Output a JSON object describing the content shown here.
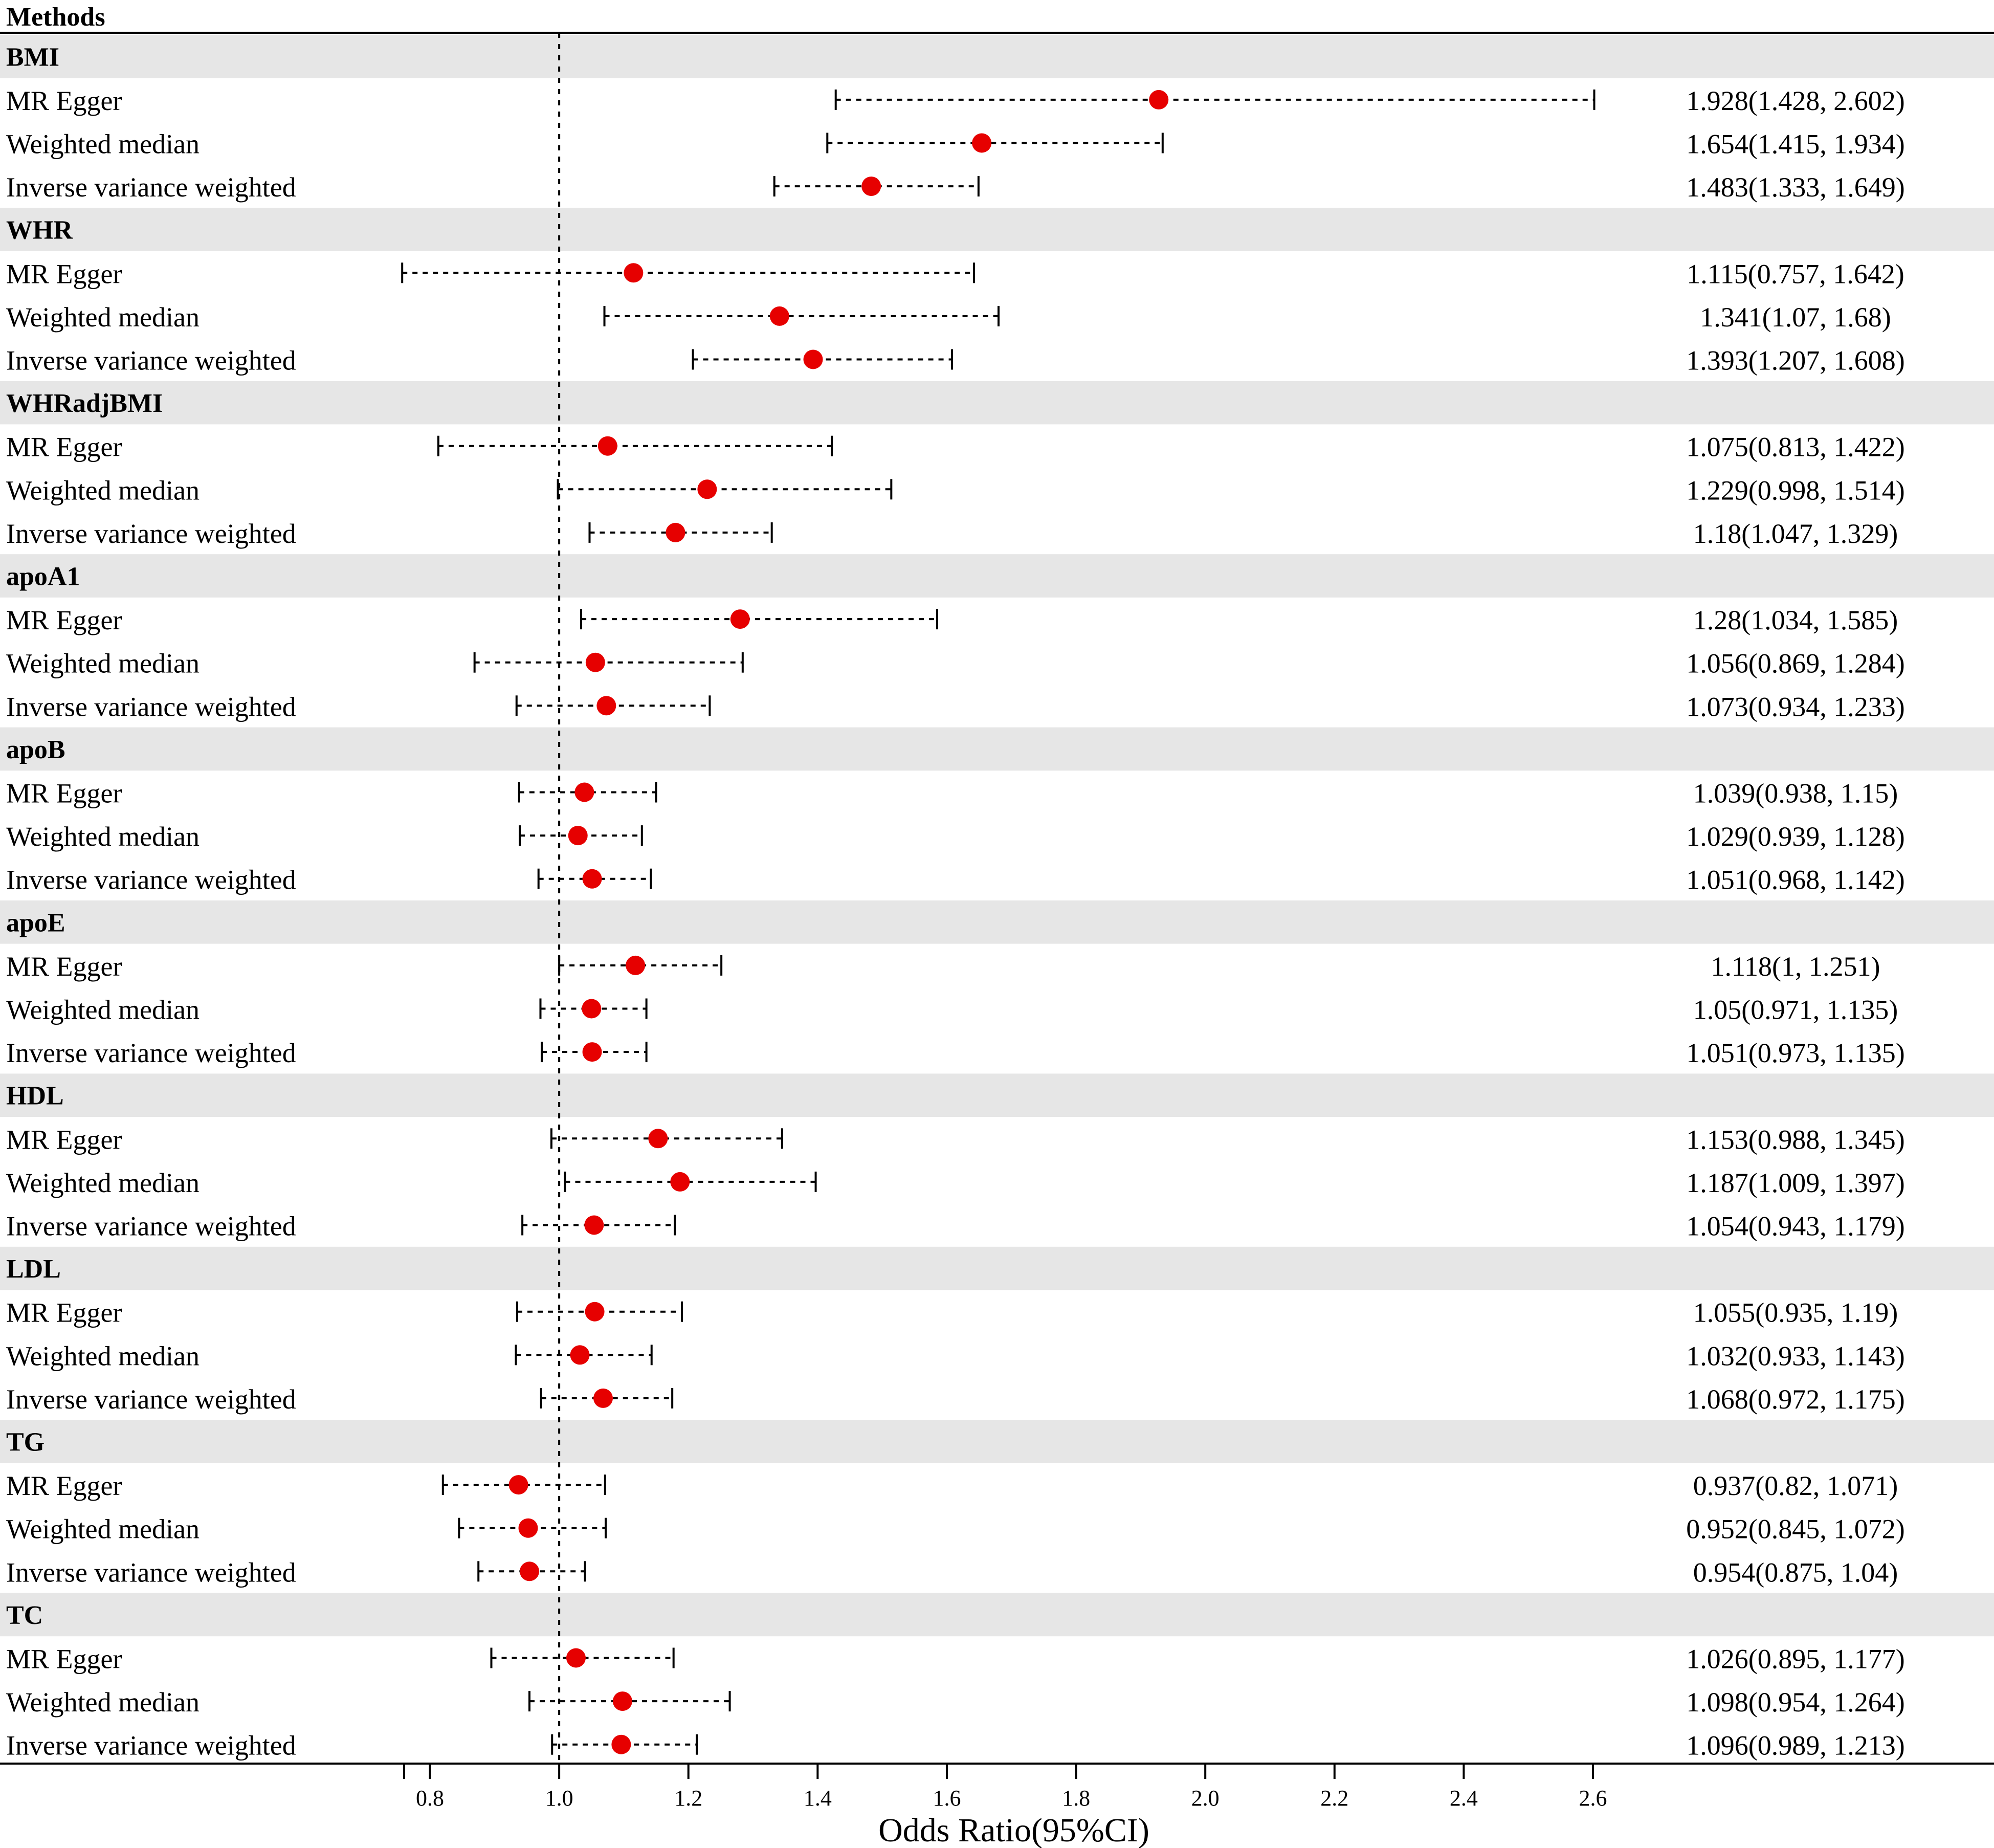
{
  "header": {
    "methods_label": "Methods"
  },
  "colors": {
    "point": "#e60000",
    "band": "#e6e6e6",
    "line": "#000000"
  },
  "chart_data": {
    "type": "forest",
    "xlabel": "Odds Ratio(95%CI)",
    "reference_line": 1.0,
    "xlim": [
      0.76,
      2.6
    ],
    "xticks": [
      "0.8",
      "1.0",
      "1.2",
      "1.4",
      "1.6",
      "1.8",
      "2.0",
      "2.2",
      "2.4",
      "2.6"
    ],
    "groups": [
      {
        "name": "BMI",
        "rows": [
          {
            "method": "MR Egger",
            "or": 1.928,
            "lo": 1.428,
            "hi": 2.602,
            "text": "1.928(1.428, 2.602)"
          },
          {
            "method": "Weighted median",
            "or": 1.654,
            "lo": 1.415,
            "hi": 1.934,
            "text": "1.654(1.415, 1.934)"
          },
          {
            "method": "Inverse variance weighted",
            "or": 1.483,
            "lo": 1.333,
            "hi": 1.649,
            "text": "1.483(1.333, 1.649)"
          }
        ]
      },
      {
        "name": "WHR",
        "rows": [
          {
            "method": "MR Egger",
            "or": 1.115,
            "lo": 0.757,
            "hi": 1.642,
            "text": "1.115(0.757, 1.642)"
          },
          {
            "method": "Weighted median",
            "or": 1.341,
            "lo": 1.07,
            "hi": 1.68,
            "text": "1.341(1.07, 1.68)"
          },
          {
            "method": "Inverse variance weighted",
            "or": 1.393,
            "lo": 1.207,
            "hi": 1.608,
            "text": "1.393(1.207, 1.608)"
          }
        ]
      },
      {
        "name": "WHRadjBMI",
        "rows": [
          {
            "method": "MR Egger",
            "or": 1.075,
            "lo": 0.813,
            "hi": 1.422,
            "text": "1.075(0.813, 1.422)"
          },
          {
            "method": "Weighted median",
            "or": 1.229,
            "lo": 0.998,
            "hi": 1.514,
            "text": "1.229(0.998, 1.514)"
          },
          {
            "method": "Inverse variance weighted",
            "or": 1.18,
            "lo": 1.047,
            "hi": 1.329,
            "text": "1.18(1.047, 1.329)"
          }
        ]
      },
      {
        "name": "apoA1",
        "rows": [
          {
            "method": "MR Egger",
            "or": 1.28,
            "lo": 1.034,
            "hi": 1.585,
            "text": "1.28(1.034, 1.585)"
          },
          {
            "method": "Weighted median",
            "or": 1.056,
            "lo": 0.869,
            "hi": 1.284,
            "text": "1.056(0.869, 1.284)"
          },
          {
            "method": "Inverse variance weighted",
            "or": 1.073,
            "lo": 0.934,
            "hi": 1.233,
            "text": "1.073(0.934, 1.233)"
          }
        ]
      },
      {
        "name": "apoB",
        "rows": [
          {
            "method": "MR Egger",
            "or": 1.039,
            "lo": 0.938,
            "hi": 1.15,
            "text": "1.039(0.938, 1.15)"
          },
          {
            "method": "Weighted median",
            "or": 1.029,
            "lo": 0.939,
            "hi": 1.128,
            "text": "1.029(0.939, 1.128)"
          },
          {
            "method": "Inverse variance weighted",
            "or": 1.051,
            "lo": 0.968,
            "hi": 1.142,
            "text": "1.051(0.968, 1.142)"
          }
        ]
      },
      {
        "name": "apoE",
        "rows": [
          {
            "method": "MR Egger",
            "or": 1.118,
            "lo": 1.0,
            "hi": 1.251,
            "text": "1.118(1, 1.251)"
          },
          {
            "method": "Weighted median",
            "or": 1.05,
            "lo": 0.971,
            "hi": 1.135,
            "text": "1.05(0.971, 1.135)"
          },
          {
            "method": "Inverse variance weighted",
            "or": 1.051,
            "lo": 0.973,
            "hi": 1.135,
            "text": "1.051(0.973, 1.135)"
          }
        ]
      },
      {
        "name": "HDL",
        "rows": [
          {
            "method": "MR Egger",
            "or": 1.153,
            "lo": 0.988,
            "hi": 1.345,
            "text": "1.153(0.988, 1.345)"
          },
          {
            "method": "Weighted median",
            "or": 1.187,
            "lo": 1.009,
            "hi": 1.397,
            "text": "1.187(1.009, 1.397)"
          },
          {
            "method": "Inverse variance weighted",
            "or": 1.054,
            "lo": 0.943,
            "hi": 1.179,
            "text": "1.054(0.943, 1.179)"
          }
        ]
      },
      {
        "name": "LDL",
        "rows": [
          {
            "method": "MR Egger",
            "or": 1.055,
            "lo": 0.935,
            "hi": 1.19,
            "text": "1.055(0.935, 1.19)"
          },
          {
            "method": "Weighted median",
            "or": 1.032,
            "lo": 0.933,
            "hi": 1.143,
            "text": "1.032(0.933, 1.143)"
          },
          {
            "method": "Inverse variance weighted",
            "or": 1.068,
            "lo": 0.972,
            "hi": 1.175,
            "text": "1.068(0.972, 1.175)"
          }
        ]
      },
      {
        "name": "TG",
        "rows": [
          {
            "method": "MR Egger",
            "or": 0.937,
            "lo": 0.82,
            "hi": 1.071,
            "text": "0.937(0.82, 1.071)"
          },
          {
            "method": "Weighted median",
            "or": 0.952,
            "lo": 0.845,
            "hi": 1.072,
            "text": "0.952(0.845, 1.072)"
          },
          {
            "method": "Inverse variance weighted",
            "or": 0.954,
            "lo": 0.875,
            "hi": 1.04,
            "text": "0.954(0.875, 1.04)"
          }
        ]
      },
      {
        "name": "TC",
        "rows": [
          {
            "method": "MR Egger",
            "or": 1.026,
            "lo": 0.895,
            "hi": 1.177,
            "text": "1.026(0.895, 1.177)"
          },
          {
            "method": "Weighted median",
            "or": 1.098,
            "lo": 0.954,
            "hi": 1.264,
            "text": "1.098(0.954, 1.264)"
          },
          {
            "method": "Inverse variance weighted",
            "or": 1.096,
            "lo": 0.989,
            "hi": 1.213,
            "text": "1.096(0.989, 1.213)"
          }
        ]
      }
    ]
  }
}
